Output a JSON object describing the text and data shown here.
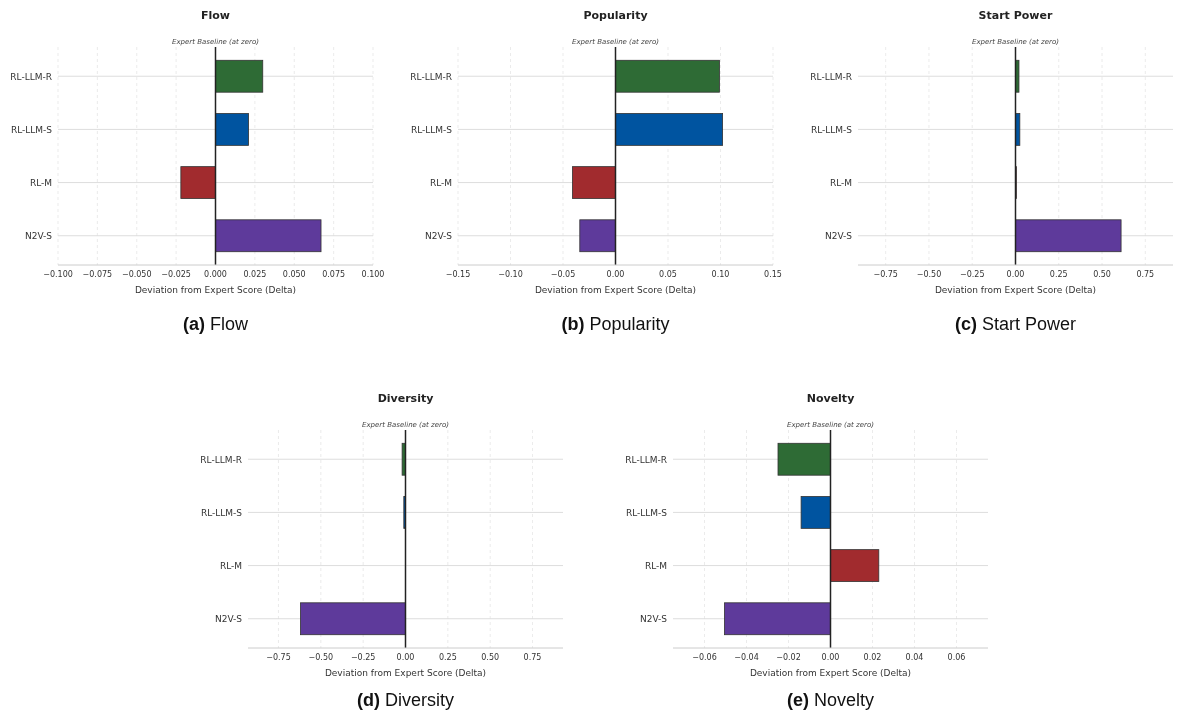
{
  "chart_data": [
    {
      "type": "bar",
      "orientation": "horizontal",
      "title": "Flow",
      "xlabel": "Deviation from Expert Score (Delta)",
      "categories": [
        "RL-LLM-R",
        "RL-LLM-S",
        "RL-M",
        "N2V-S"
      ],
      "values": [
        0.03,
        0.021,
        -0.022,
        0.067
      ],
      "colors": [
        "#2e6b35",
        "#0054a0",
        "#a12b2e",
        "#5e3a9b"
      ],
      "xlim": [
        -0.1,
        0.1
      ],
      "xticks": [
        {
          "value": -0.1,
          "label": "−0.100"
        },
        {
          "value": -0.075,
          "label": "−0.075"
        },
        {
          "value": -0.05,
          "label": "−0.050"
        },
        {
          "value": -0.025,
          "label": "−0.025"
        },
        {
          "value": 0,
          "label": "0.000"
        },
        {
          "value": 0.025,
          "label": "0.025"
        },
        {
          "value": 0.05,
          "label": "0.050"
        },
        {
          "value": 0.075,
          "label": "0.075"
        },
        {
          "value": 0.1,
          "label": "0.100"
        }
      ],
      "grid": true,
      "ref_lines": [
        {
          "axis": "x",
          "value": 0,
          "label": "Expert Baseline (at zero)",
          "color": "#222222"
        }
      ],
      "annotations": [
        "(a) Flow"
      ]
    },
    {
      "type": "bar",
      "orientation": "horizontal",
      "title": "Popularity",
      "xlabel": "Deviation from Expert Score (Delta)",
      "categories": [
        "RL-LLM-R",
        "RL-LLM-S",
        "RL-M",
        "N2V-S"
      ],
      "values": [
        0.099,
        0.102,
        -0.041,
        -0.034
      ],
      "colors": [
        "#2e6b35",
        "#0054a0",
        "#a12b2e",
        "#5e3a9b"
      ],
      "xlim": [
        -0.15,
        0.15
      ],
      "xticks": [
        {
          "value": -0.15,
          "label": "−0.15"
        },
        {
          "value": -0.1,
          "label": "−0.10"
        },
        {
          "value": -0.05,
          "label": "−0.05"
        },
        {
          "value": 0,
          "label": "0.00"
        },
        {
          "value": 0.05,
          "label": "0.05"
        },
        {
          "value": 0.1,
          "label": "0.10"
        },
        {
          "value": 0.15,
          "label": "0.15"
        }
      ],
      "grid": true,
      "ref_lines": [
        {
          "axis": "x",
          "value": 0,
          "label": "Expert Baseline (at zero)",
          "color": "#222222"
        }
      ],
      "annotations": [
        "(b) Popularity"
      ]
    },
    {
      "type": "bar",
      "orientation": "horizontal",
      "title": "Start Power",
      "xlabel": "Deviation from Expert Score (Delta)",
      "categories": [
        "RL-LLM-R",
        "RL-LLM-S",
        "RL-M",
        "N2V-S"
      ],
      "values": [
        0.02,
        0.025,
        0.005,
        0.61
      ],
      "colors": [
        "#2e6b35",
        "#0054a0",
        "#a12b2e",
        "#5e3a9b"
      ],
      "xlim": [
        -0.91,
        0.91
      ],
      "xticks": [
        {
          "value": -0.75,
          "label": "−0.75"
        },
        {
          "value": -0.5,
          "label": "−0.50"
        },
        {
          "value": -0.25,
          "label": "−0.25"
        },
        {
          "value": 0,
          "label": "0.00"
        },
        {
          "value": 0.25,
          "label": "0.25"
        },
        {
          "value": 0.5,
          "label": "0.50"
        },
        {
          "value": 0.75,
          "label": "0.75"
        }
      ],
      "grid": true,
      "ref_lines": [
        {
          "axis": "x",
          "value": 0,
          "label": "Expert Baseline (at zero)",
          "color": "#222222"
        }
      ],
      "annotations": [
        "(c) Start Power"
      ]
    },
    {
      "type": "bar",
      "orientation": "horizontal",
      "title": "Diversity",
      "xlabel": "Deviation from Expert Score (Delta)",
      "categories": [
        "RL-LLM-R",
        "RL-LLM-S",
        "RL-M",
        "N2V-S"
      ],
      "values": [
        -0.02,
        -0.01,
        null,
        -0.62
      ],
      "colors": [
        "#2e6b35",
        "#0054a0",
        null,
        "#5e3a9b"
      ],
      "xlim": [
        -0.93,
        0.93
      ],
      "xticks": [
        {
          "value": -0.75,
          "label": "−0.75"
        },
        {
          "value": -0.5,
          "label": "−0.50"
        },
        {
          "value": -0.25,
          "label": "−0.25"
        },
        {
          "value": 0,
          "label": "0.00"
        },
        {
          "value": 0.25,
          "label": "0.25"
        },
        {
          "value": 0.5,
          "label": "0.50"
        },
        {
          "value": 0.75,
          "label": "0.75"
        }
      ],
      "grid": true,
      "ref_lines": [
        {
          "axis": "x",
          "value": 0,
          "label": "Expert Baseline (at zero)",
          "color": "#222222"
        }
      ],
      "annotations": [
        "(d) Diversity"
      ]
    },
    {
      "type": "bar",
      "orientation": "horizontal",
      "title": "Novelty",
      "xlabel": "Deviation from Expert Score (Delta)",
      "categories": [
        "RL-LLM-R",
        "RL-LLM-S",
        "RL-M",
        "N2V-S"
      ],
      "values": [
        -0.025,
        -0.014,
        0.023,
        -0.0505
      ],
      "colors": [
        "#2e6b35",
        "#0054a0",
        "#a12b2e",
        "#5e3a9b"
      ],
      "xlim": [
        -0.075,
        0.075
      ],
      "xticks": [
        {
          "value": -0.06,
          "label": "−0.06"
        },
        {
          "value": -0.04,
          "label": "−0.04"
        },
        {
          "value": -0.02,
          "label": "−0.02"
        },
        {
          "value": 0,
          "label": "0.00"
        },
        {
          "value": 0.02,
          "label": "0.02"
        },
        {
          "value": 0.04,
          "label": "0.04"
        },
        {
          "value": 0.06,
          "label": "0.06"
        }
      ],
      "grid": true,
      "ref_lines": [
        {
          "axis": "x",
          "value": 0,
          "label": "Expert Baseline (at zero)",
          "color": "#222222"
        }
      ],
      "annotations": [
        "(e) Novelty"
      ]
    }
  ]
}
